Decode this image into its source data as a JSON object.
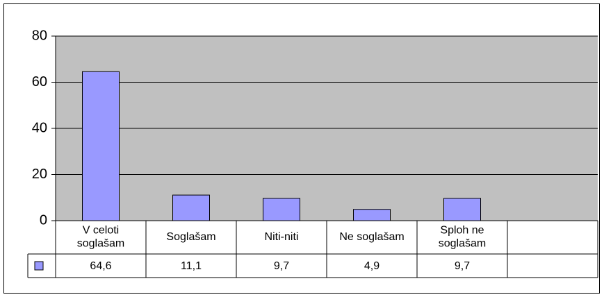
{
  "chart_data": {
    "type": "bar",
    "categories": [
      "V celoti soglašam",
      "Soglašam",
      "Niti-niti",
      "Ne soglašam",
      "Sploh ne soglašam",
      null
    ],
    "values": [
      64.6,
      11.1,
      9.7,
      4.9,
      9.7,
      null
    ],
    "value_labels": [
      "64,6",
      "11,1",
      "9,7",
      "4,9",
      "9,7",
      null
    ],
    "color": "#9999ff",
    "plot_color": "#c0c0c0",
    "ylim": [
      0,
      80
    ],
    "yticks": [
      0,
      20,
      40,
      60,
      80
    ],
    "grid": true
  }
}
